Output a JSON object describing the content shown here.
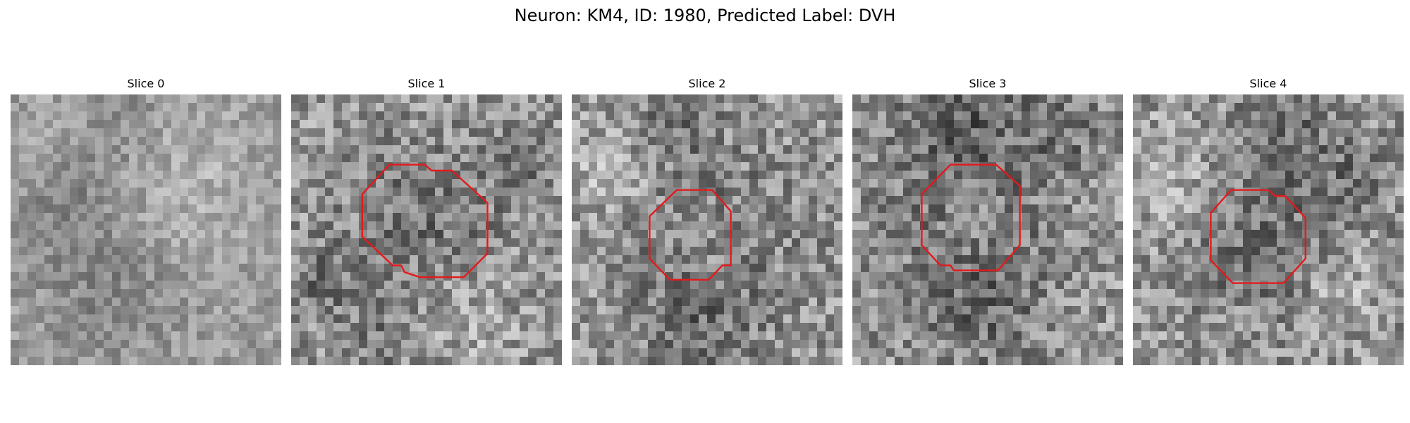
{
  "figure": {
    "title": "Neuron: KM4, ID: 1980, Predicted Label: DVH"
  },
  "panels": [
    {
      "title": "Slice 0",
      "has_outline": false
    },
    {
      "title": "Slice 1",
      "has_outline": true
    },
    {
      "title": "Slice 2",
      "has_outline": true
    },
    {
      "title": "Slice 3",
      "has_outline": true
    },
    {
      "title": "Slice 4",
      "has_outline": true
    }
  ],
  "colors": {
    "outline": "#e31a1c",
    "background": "#ffffff",
    "text": "#000000"
  }
}
